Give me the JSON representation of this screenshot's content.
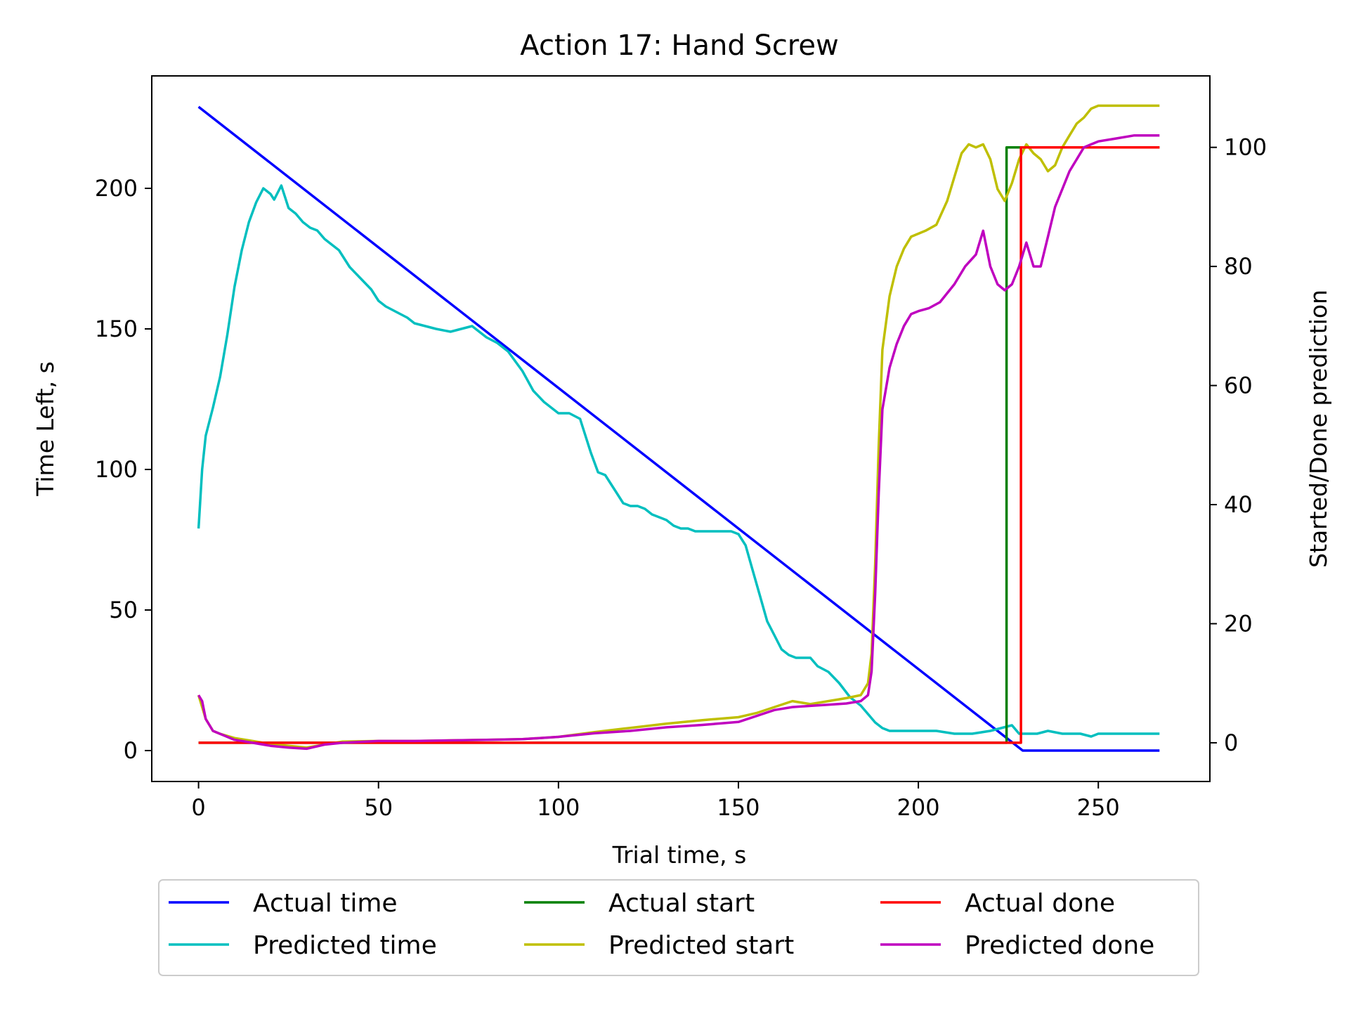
{
  "chart_data": {
    "type": "line",
    "title": "Action 17: Hand Screw",
    "xlabel": "Trial time, s",
    "ylabel": "Time Left, s",
    "y2label": "Started/Done prediction",
    "xlim": [
      -13,
      281
    ],
    "ylim": [
      -11,
      240
    ],
    "y2lim": [
      -6.5,
      112
    ],
    "xticks": [
      0,
      50,
      100,
      150,
      200,
      250
    ],
    "yticks": [
      0,
      50,
      100,
      150,
      200
    ],
    "y2ticks": [
      0,
      20,
      40,
      60,
      80,
      100
    ],
    "grid": false,
    "legend_position": "bottom-outside",
    "series": [
      {
        "name": "Actual time",
        "color": "#0000ff",
        "axis": "left",
        "x": [
          0,
          229,
          267
        ],
        "y": [
          229,
          0,
          0
        ]
      },
      {
        "name": "Predicted time",
        "color": "#00bfbf",
        "axis": "left",
        "x": [
          0,
          1,
          2,
          4,
          6,
          8,
          10,
          12,
          14,
          16,
          18,
          20,
          21,
          23,
          25,
          27,
          29,
          31,
          33,
          35,
          37,
          39,
          40,
          42,
          45,
          48,
          50,
          52,
          55,
          58,
          60,
          63,
          66,
          70,
          73,
          76,
          78,
          80,
          83,
          86,
          90,
          93,
          96,
          100,
          103,
          106,
          109,
          111,
          113,
          116,
          118,
          120,
          122,
          124,
          126,
          128,
          130,
          132,
          134,
          136,
          138,
          140,
          142,
          145,
          148,
          150,
          152,
          154,
          156,
          158,
          160,
          162,
          164,
          166,
          168,
          170,
          172,
          175,
          178,
          181,
          184,
          186,
          188,
          190,
          192,
          195,
          200,
          205,
          210,
          215,
          220,
          223,
          226,
          228,
          230,
          233,
          236,
          240,
          245,
          248,
          250,
          255,
          260,
          267
        ],
        "y": [
          79,
          100,
          112,
          122,
          133,
          148,
          165,
          178,
          188,
          195,
          200,
          198,
          196,
          201,
          193,
          191,
          188,
          186,
          185,
          182,
          180,
          178,
          176,
          172,
          168,
          164,
          160,
          158,
          156,
          154,
          152,
          151,
          150,
          149,
          150,
          151,
          149,
          147,
          145,
          142,
          135,
          128,
          124,
          120,
          120,
          118,
          106,
          99,
          98,
          92,
          88,
          87,
          87,
          86,
          84,
          83,
          82,
          80,
          79,
          79,
          78,
          78,
          78,
          78,
          78,
          77,
          73,
          64,
          55,
          46,
          41,
          36,
          34,
          33,
          33,
          33,
          30,
          28,
          24,
          19,
          16,
          13,
          10,
          8,
          7,
          7,
          7,
          7,
          6,
          6,
          7,
          8,
          9,
          6,
          6,
          6,
          7,
          6,
          6,
          5,
          6,
          6,
          6,
          6
        ]
      },
      {
        "name": "Actual start",
        "color": "#008000",
        "axis": "right",
        "x": [
          0,
          224.5,
          224.5,
          267
        ],
        "y": [
          0,
          0,
          100,
          100
        ]
      },
      {
        "name": "Predicted start",
        "color": "#bfbf00",
        "axis": "right",
        "x": [
          0,
          2,
          4,
          6,
          10,
          15,
          20,
          25,
          30,
          40,
          50,
          60,
          70,
          80,
          90,
          100,
          110,
          120,
          130,
          140,
          150,
          155,
          160,
          165,
          170,
          175,
          180,
          184,
          186,
          187,
          188,
          189,
          190,
          192,
          194,
          196,
          198,
          200,
          202,
          205,
          208,
          210,
          212,
          214,
          216,
          218,
          220,
          222,
          224,
          226,
          228,
          230,
          232,
          234,
          236,
          238,
          240,
          242,
          244,
          246,
          248,
          250,
          255,
          260,
          265,
          267
        ],
        "y": [
          8,
          4,
          2,
          1.5,
          0.8,
          0.3,
          -0.2,
          -0.5,
          -0.8,
          0.2,
          0.3,
          0.3,
          0.4,
          0.5,
          0.6,
          1,
          1.8,
          2.5,
          3.2,
          3.8,
          4.3,
          5,
          6,
          7,
          6.5,
          7,
          7.5,
          8,
          10,
          15,
          30,
          50,
          66,
          75,
          80,
          83,
          85,
          85.5,
          86,
          87,
          91,
          95,
          99,
          100.5,
          100,
          100.5,
          98,
          93,
          91,
          94,
          98,
          100.5,
          99,
          98,
          96,
          97,
          100,
          102,
          104,
          105,
          106.5,
          107,
          107,
          107,
          107,
          107
        ]
      },
      {
        "name": "Actual done",
        "color": "#ff0000",
        "axis": "right",
        "x": [
          0,
          228.5,
          228.5,
          267
        ],
        "y": [
          0,
          0,
          100,
          100
        ]
      },
      {
        "name": "Predicted done",
        "color": "#bf00bf",
        "axis": "right",
        "x": [
          0,
          1,
          2,
          4,
          6,
          10,
          15,
          20,
          25,
          30,
          35,
          40,
          50,
          60,
          70,
          80,
          90,
          100,
          110,
          120,
          130,
          140,
          150,
          155,
          160,
          165,
          170,
          175,
          180,
          184,
          186,
          187,
          188,
          189,
          190,
          192,
          194,
          196,
          198,
          200,
          203,
          206,
          210,
          213,
          216,
          218,
          220,
          222,
          224,
          226,
          228,
          230,
          232,
          234,
          236,
          238,
          240,
          242,
          244,
          246,
          248,
          250,
          255,
          260,
          265,
          267
        ],
        "y": [
          8,
          7,
          4,
          2,
          1.5,
          0.5,
          0,
          -0.5,
          -0.8,
          -1,
          -0.3,
          0,
          0.3,
          0.3,
          0.4,
          0.5,
          0.6,
          1,
          1.6,
          2,
          2.6,
          3,
          3.5,
          4.5,
          5.5,
          6,
          6.2,
          6.4,
          6.6,
          7,
          8,
          12,
          25,
          42,
          56,
          63,
          67,
          70,
          72,
          72.5,
          73,
          74,
          77,
          80,
          82,
          86,
          80,
          77,
          76,
          77,
          80,
          84,
          80,
          80,
          85,
          90,
          93,
          96,
          98,
          100,
          100.5,
          101,
          101.5,
          102,
          102,
          102
        ]
      }
    ]
  }
}
